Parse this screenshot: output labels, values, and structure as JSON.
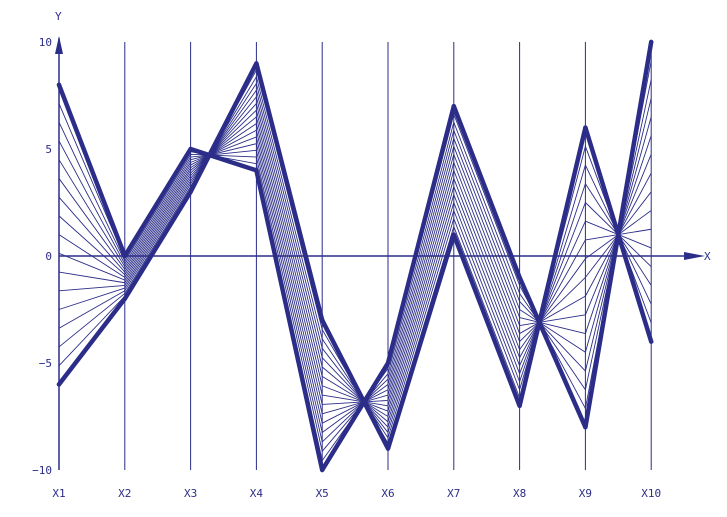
{
  "chart_data": {
    "type": "line",
    "title": "",
    "xlabel": "X",
    "ylabel": "Y",
    "x_tick_labels": [
      "X1",
      "X2",
      "X3",
      "X4",
      "X5",
      "X6",
      "X7",
      "X8",
      "X9",
      "X10"
    ],
    "y_tick_labels": [
      "10",
      "5",
      "0",
      "−5",
      "−10"
    ],
    "ylim": [
      -10,
      10
    ],
    "grid": "vertical lines at each X axis",
    "series_color": "#2b2d88",
    "series": [
      {
        "values": [
          8,
          0,
          5,
          4,
          -10,
          -5,
          7,
          -1,
          -8,
          10
        ]
      },
      {
        "values": [
          -6,
          -2,
          3,
          9,
          -3,
          -9,
          1,
          -7,
          6,
          -4
        ]
      }
    ],
    "blend_steps": 16
  }
}
